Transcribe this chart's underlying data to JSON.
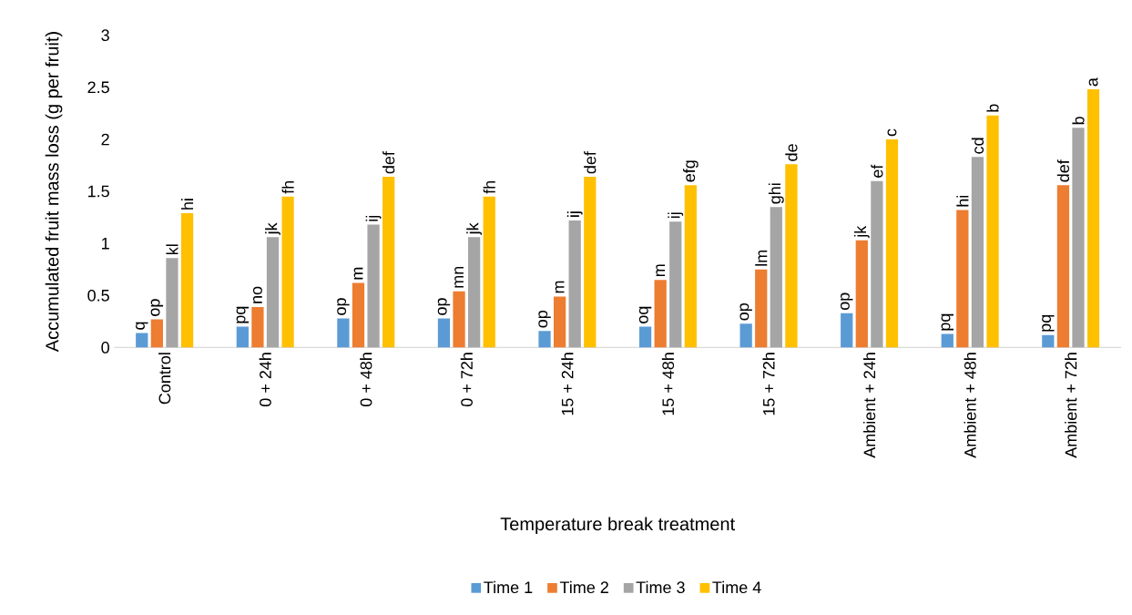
{
  "chart_data": {
    "type": "bar",
    "xlabel": "Temperature break treatment",
    "ylabel": "Accumulated fruit mass loss (g per fruit)",
    "categories": [
      "Control",
      "0 + 24h",
      "0 + 48h",
      "0 + 72h",
      "15 + 24h",
      "15 + 48h",
      "15 + 72h",
      "Ambient + 24h",
      "Ambient + 48h",
      "Ambient + 72h"
    ],
    "series": [
      {
        "name": "Time 1",
        "color": "#5b9bd5",
        "values": [
          0.14,
          0.2,
          0.28,
          0.28,
          0.16,
          0.2,
          0.23,
          0.33,
          0.13,
          0.12
        ],
        "value_labels": [
          "q",
          "pq",
          "op",
          "op",
          "op",
          "oq",
          "op",
          "op",
          "pq",
          "pq"
        ]
      },
      {
        "name": "Time 2",
        "color": "#ed7d31",
        "values": [
          0.27,
          0.39,
          0.62,
          0.54,
          0.49,
          0.65,
          0.75,
          1.03,
          1.32,
          1.56
        ],
        "value_labels": [
          "op",
          "no",
          "m",
          "mn",
          "m",
          "m",
          "lm",
          "jk",
          "hi",
          "def"
        ]
      },
      {
        "name": "Time 3",
        "color": "#a5a5a5",
        "values": [
          0.86,
          1.06,
          1.18,
          1.06,
          1.22,
          1.21,
          1.35,
          1.6,
          1.83,
          2.11
        ],
        "value_labels": [
          "kl",
          "jk",
          "ij",
          "jk",
          "ij",
          "ij",
          "ghi",
          "ef",
          "cd",
          "b"
        ]
      },
      {
        "name": "Time 4",
        "color": "#ffc000",
        "values": [
          1.29,
          1.45,
          1.64,
          1.45,
          1.64,
          1.56,
          1.76,
          2.0,
          2.23,
          2.48
        ],
        "value_labels": [
          "hi",
          "fh",
          "def",
          "fh",
          "def",
          "efg",
          "de",
          "c",
          "b",
          "a"
        ]
      }
    ],
    "ylim": [
      0,
      3
    ],
    "yticks": [
      0,
      0.5,
      1,
      1.5,
      2,
      2.5,
      3
    ],
    "grid": false,
    "legend": "bottom"
  }
}
